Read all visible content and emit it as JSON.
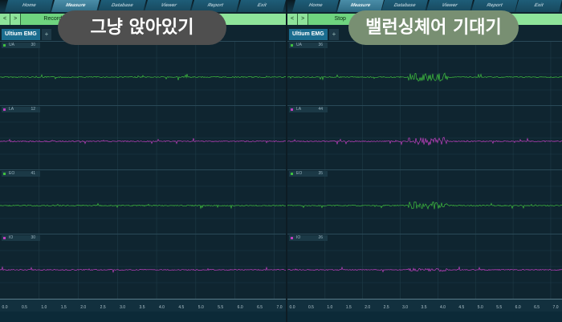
{
  "nav": [
    "Home",
    "Measure",
    "Database",
    "Viewer",
    "Report",
    "Exit"
  ],
  "panels": [
    {
      "caption": "그냥 앉아있기",
      "toolbar_action": "Record",
      "tab": "Ultium EMG",
      "tab_add": "+",
      "channels": [
        {
          "name": "UA",
          "value": "30"
        },
        {
          "name": "LA",
          "value": "12"
        },
        {
          "name": "EO",
          "value": "41"
        },
        {
          "name": "IO",
          "value": "30"
        }
      ]
    },
    {
      "caption": "밸런싱체어 기대기",
      "toolbar_action": "Stop",
      "tab": "Ultium EMG",
      "tab_add": "+",
      "channels": [
        {
          "name": "UA",
          "value": "36"
        },
        {
          "name": "LA",
          "value": "44"
        },
        {
          "name": "EO",
          "value": "35"
        },
        {
          "name": "IO",
          "value": "26"
        }
      ]
    }
  ],
  "toolbar": {
    "back": "<",
    "play": ">"
  },
  "axis_ticks": [
    "0.0",
    "0.5",
    "1.0",
    "1.5",
    "2.0",
    "2.5",
    "3.0",
    "3.5",
    "4.0",
    "4.5",
    "5.0",
    "5.5",
    "6.0",
    "6.5",
    "7.0"
  ],
  "colors": {
    "green": "#3fbf3f",
    "magenta": "#c040c0"
  }
}
